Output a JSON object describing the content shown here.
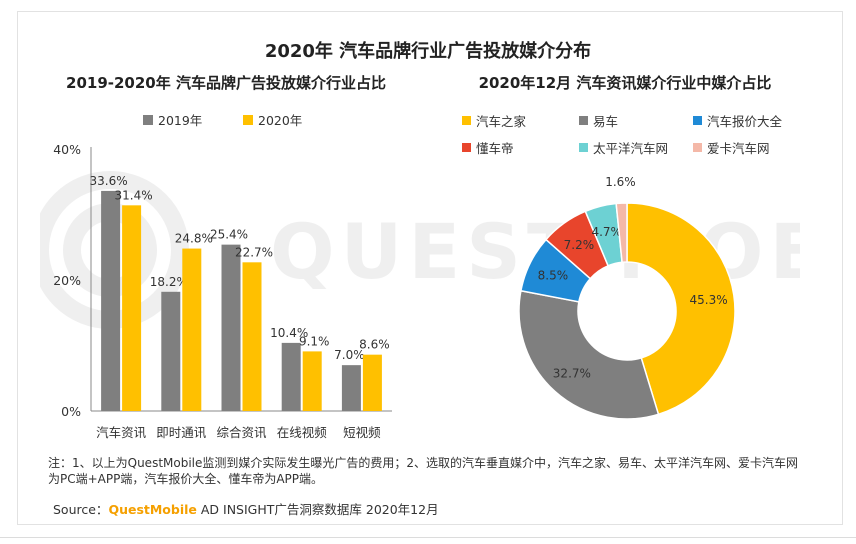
{
  "main_title": "2020年 汽车品牌行业广告投放媒介分布",
  "watermark_text": "QUEST MOBILE",
  "note": "注：1、以上为QuestMobile监测到媒介实际发生曝光广告的费用；2、选取的汽车垂直媒介中，汽车之家、易车、太平洋汽车网、爱卡汽车网为PC端+APP端，汽车报价大全、懂车帝为APP端。",
  "source": {
    "prefix": "Source：",
    "brand": "QuestMobile",
    "suffix": " AD INSIGHT广告洞察数据库 2020年12月"
  },
  "colors": {
    "gray": "#7f7f7f",
    "yellow": "#ffc000",
    "blue": "#1f8ad6",
    "red": "#e8452c",
    "cyan": "#6dd1d3",
    "pink": "#f4b8a8"
  },
  "chart_data": [
    {
      "type": "bar",
      "title": "2019-2020年 汽车品牌广告投放媒介行业占比",
      "categories": [
        "汽车资讯",
        "即时通讯",
        "综合资讯",
        "在线视频",
        "短视频"
      ],
      "series": [
        {
          "name": "2019年",
          "color": "#7f7f7f",
          "values": [
            33.6,
            18.2,
            25.4,
            10.4,
            7.0
          ],
          "labels": [
            "33.6%",
            "18.2%",
            "25.4%",
            "10.4%",
            "7.0%"
          ]
        },
        {
          "name": "2020年",
          "color": "#ffc000",
          "values": [
            31.4,
            24.8,
            22.7,
            9.1,
            8.6
          ],
          "labels": [
            "31.4%",
            "24.8%",
            "22.7%",
            "9.1%",
            "8.6%"
          ]
        }
      ],
      "ylim": [
        0,
        40
      ],
      "yticks": [
        0,
        20,
        40
      ],
      "ytick_labels": [
        "0%",
        "20%",
        "40%"
      ],
      "legend_position": "top"
    },
    {
      "type": "pie",
      "donut": true,
      "title": "2020年12月 汽车资讯媒介行业中媒介占比",
      "slices": [
        {
          "name": "汽车之家",
          "value": 45.3,
          "label": "45.3%",
          "color": "#ffc000"
        },
        {
          "name": "易车",
          "value": 32.7,
          "label": "32.7%",
          "color": "#7f7f7f"
        },
        {
          "name": "汽车报价大全",
          "value": 8.5,
          "label": "8.5%",
          "color": "#1f8ad6"
        },
        {
          "name": "懂车帝",
          "value": 7.2,
          "label": "7.2%",
          "color": "#e8452c"
        },
        {
          "name": "太平洋汽车网",
          "value": 4.7,
          "label": "4.7%",
          "color": "#6dd1d3"
        },
        {
          "name": "爱卡汽车网",
          "value": 1.6,
          "label": "1.6%",
          "color": "#f4b8a8"
        }
      ],
      "legend_position": "top"
    }
  ]
}
